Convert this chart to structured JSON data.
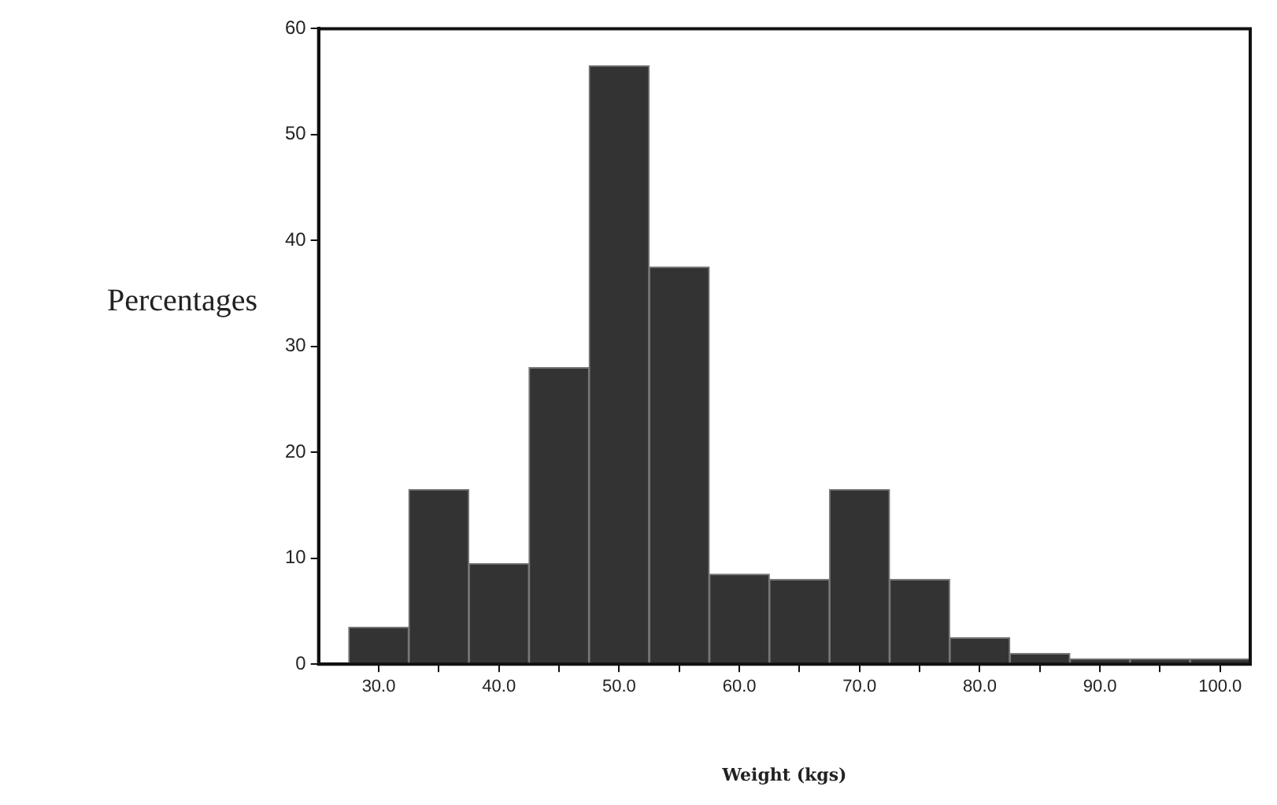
{
  "chart_data": {
    "type": "histogram",
    "xlabel": "Weight (kgs)",
    "ylabel": "Percentages",
    "bins": [
      27.5,
      32.5,
      37.5,
      42.5,
      47.5,
      52.5,
      57.5,
      62.5,
      67.5,
      72.5,
      77.5,
      82.5,
      87.5,
      92.5,
      97.5,
      102.5
    ],
    "values": [
      3.5,
      16.5,
      9.5,
      28,
      56.5,
      37.5,
      8.5,
      8,
      16.5,
      8,
      2.5,
      1,
      0.5,
      0.5,
      0.5
    ],
    "color": "#333333",
    "xlim": [
      25,
      102.5
    ],
    "xticks": [
      {
        "value": 30,
        "label": "30.0"
      },
      {
        "value": 35,
        "label": null
      },
      {
        "value": 40,
        "label": "40.0"
      },
      {
        "value": 45,
        "label": null
      },
      {
        "value": 50,
        "label": "50.0"
      },
      {
        "value": 55,
        "label": null
      },
      {
        "value": 60,
        "label": "60.0"
      },
      {
        "value": 65,
        "label": null
      },
      {
        "value": 70,
        "label": "70.0"
      },
      {
        "value": 75,
        "label": null
      },
      {
        "value": 80,
        "label": "80.0"
      },
      {
        "value": 85,
        "label": null
      },
      {
        "value": 90,
        "label": "90.0"
      },
      {
        "value": 95,
        "label": null
      },
      {
        "value": 100,
        "label": "100.0"
      }
    ],
    "ylim": [
      0,
      60
    ],
    "yticks": [
      0,
      10,
      20,
      30,
      40,
      50,
      60
    ],
    "grid": false,
    "legend": false
  }
}
